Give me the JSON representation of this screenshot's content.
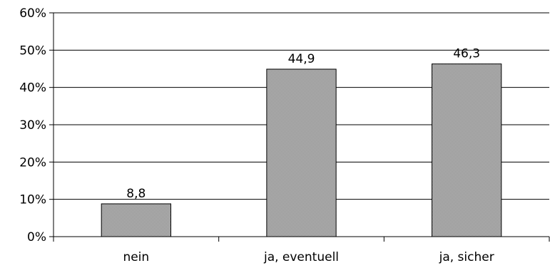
{
  "chart_data": {
    "type": "bar",
    "categories": [
      "nein",
      "ja, eventuell",
      "ja, sicher"
    ],
    "values": [
      8.8,
      44.9,
      46.3
    ],
    "value_labels": [
      "8,8",
      "44,9",
      "46,3"
    ],
    "title": "",
    "xlabel": "",
    "ylabel": "",
    "ylim": [
      0,
      60
    ],
    "y_ticks": [
      0,
      10,
      20,
      30,
      40,
      50,
      60
    ],
    "y_tick_labels": [
      "0%",
      "10%",
      "20%",
      "30%",
      "40%",
      "50%",
      "60%"
    ],
    "grid": true,
    "legend": "none",
    "colors": {
      "bar_fill": "#a8a8a8",
      "bar_stroke": "#000000",
      "gridline": "#000000",
      "axis": "#000000"
    }
  }
}
